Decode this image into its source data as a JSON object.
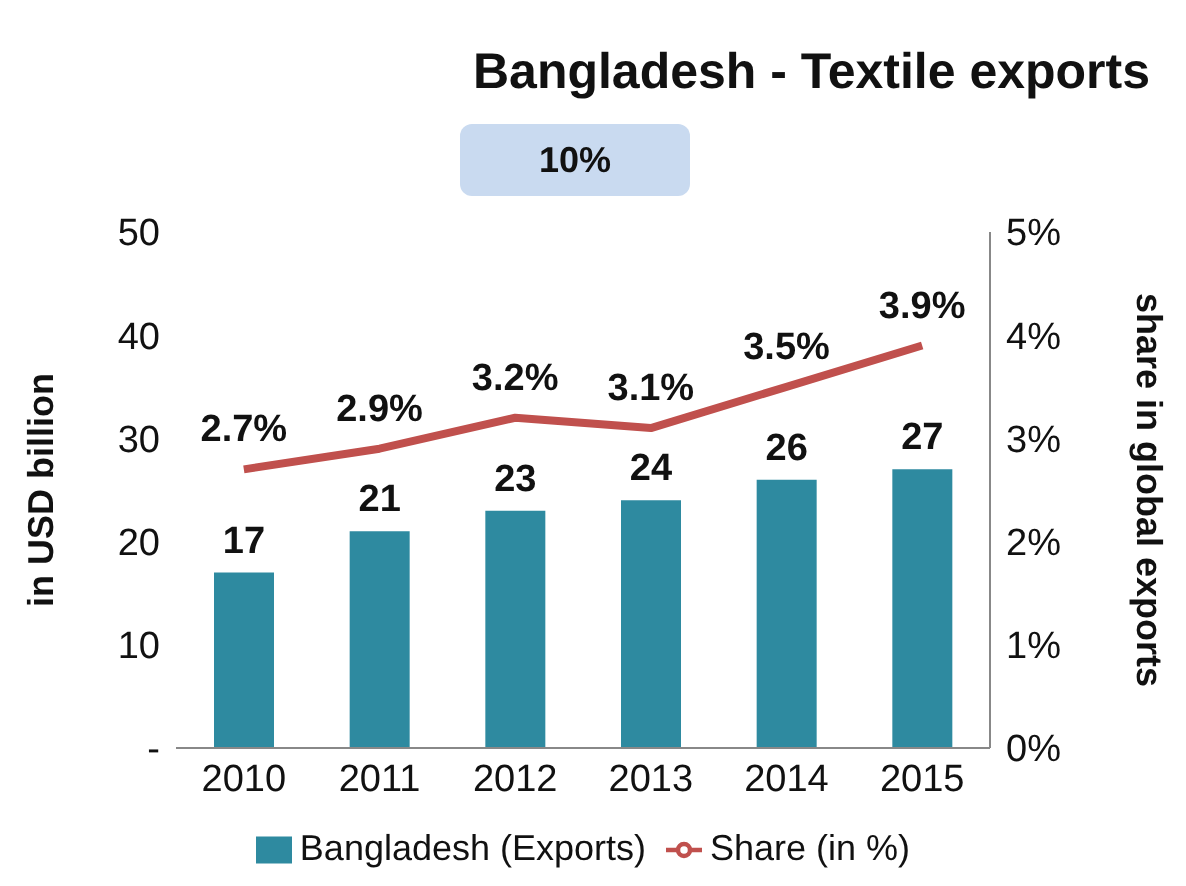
{
  "chart_data": {
    "type": "bar",
    "title": "Bangladesh - Textile exports",
    "annotations": [
      "10%"
    ],
    "categories": [
      "2010",
      "2011",
      "2012",
      "2013",
      "2014",
      "2015"
    ],
    "series": [
      {
        "name": "Bangladesh (Exports)",
        "color": "#2e8aa0",
        "values": [
          17,
          21,
          23,
          24,
          26,
          27
        ],
        "value_labels": [
          "17",
          "21",
          "23",
          "24",
          "26",
          "27"
        ]
      },
      {
        "name": "Share (in %)",
        "type": "line",
        "axis": "y2",
        "color": "#c0504d",
        "values": [
          2.7,
          2.9,
          3.2,
          3.1,
          3.5,
          3.9
        ],
        "value_labels": [
          "2.7%",
          "2.9%",
          "3.2%",
          "3.1%",
          "3.5%",
          "3.9%"
        ]
      }
    ],
    "ylabel": "in USD billion",
    "y2label": "share in global exports",
    "ylim": [
      0,
      50
    ],
    "yticks": [
      {
        "value": 0,
        "label": "-"
      },
      10,
      20,
      30,
      40,
      50
    ],
    "y2lim": [
      0,
      5
    ],
    "y2ticks": [
      {
        "value": 0,
        "label": "0%"
      },
      {
        "value": 1,
        "label": "1%"
      },
      {
        "value": 2,
        "label": "2%"
      },
      {
        "value": 3,
        "label": "3%"
      },
      {
        "value": 4,
        "label": "4%"
      },
      {
        "value": 5,
        "label": "5%"
      }
    ],
    "grid": false,
    "legend": "bottom",
    "marker": "none"
  }
}
